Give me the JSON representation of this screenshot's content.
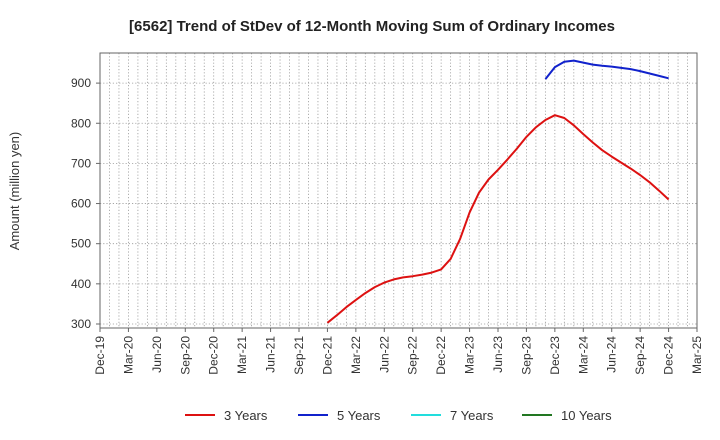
{
  "chart_data": {
    "type": "line",
    "title": "[6562]  Trend of StDev of 12-Month Moving Sum of Ordinary Incomes",
    "xlabel": "",
    "ylabel": "Amount (million yen)",
    "ylim": [
      290,
      975
    ],
    "yticks": [
      300,
      400,
      500,
      600,
      700,
      800,
      900
    ],
    "xlim": [
      "2019-12",
      "2025-03"
    ],
    "xticks": [
      "Dec-19",
      "Mar-20",
      "Jun-20",
      "Sep-20",
      "Dec-20",
      "Mar-21",
      "Jun-21",
      "Sep-21",
      "Dec-21",
      "Mar-22",
      "Jun-22",
      "Sep-22",
      "Dec-22",
      "Mar-23",
      "Jun-23",
      "Sep-23",
      "Dec-23",
      "Mar-24",
      "Jun-24",
      "Sep-24",
      "Dec-24",
      "Mar-25"
    ],
    "grid": true,
    "legend_position": "bottom",
    "series": [
      {
        "name": "3 Years",
        "color": "#dd1111",
        "x": [
          "2021-12",
          "2022-01",
          "2022-02",
          "2022-03",
          "2022-04",
          "2022-05",
          "2022-06",
          "2022-07",
          "2022-08",
          "2022-09",
          "2022-10",
          "2022-11",
          "2022-12",
          "2023-01",
          "2023-02",
          "2023-03",
          "2023-04",
          "2023-05",
          "2023-06",
          "2023-07",
          "2023-08",
          "2023-09",
          "2023-10",
          "2023-11",
          "2023-12",
          "2024-01",
          "2024-02",
          "2024-03",
          "2024-04",
          "2024-05",
          "2024-06",
          "2024-07",
          "2024-08",
          "2024-09",
          "2024-10",
          "2024-11",
          "2024-12"
        ],
        "values": [
          303,
          322,
          342,
          360,
          377,
          392,
          403,
          411,
          416,
          419,
          423,
          428,
          436,
          462,
          512,
          578,
          627,
          660,
          684,
          710,
          737,
          766,
          790,
          808,
          820,
          813,
          795,
          773,
          752,
          733,
          717,
          702,
          687,
          671,
          653,
          632,
          610
        ]
      },
      {
        "name": "5 Years",
        "color": "#1122cc",
        "x": [
          "2023-11",
          "2023-12",
          "2024-01",
          "2024-02",
          "2024-03",
          "2024-04",
          "2024-05",
          "2024-06",
          "2024-07",
          "2024-08",
          "2024-09",
          "2024-10",
          "2024-11",
          "2024-12"
        ],
        "values": [
          910,
          940,
          953,
          956,
          951,
          946,
          943,
          941,
          938,
          935,
          930,
          924,
          918,
          912
        ]
      },
      {
        "name": "7 Years",
        "color": "#22dddd",
        "x": [],
        "values": []
      },
      {
        "name": "10 Years",
        "color": "#227722",
        "x": [],
        "values": []
      }
    ]
  }
}
